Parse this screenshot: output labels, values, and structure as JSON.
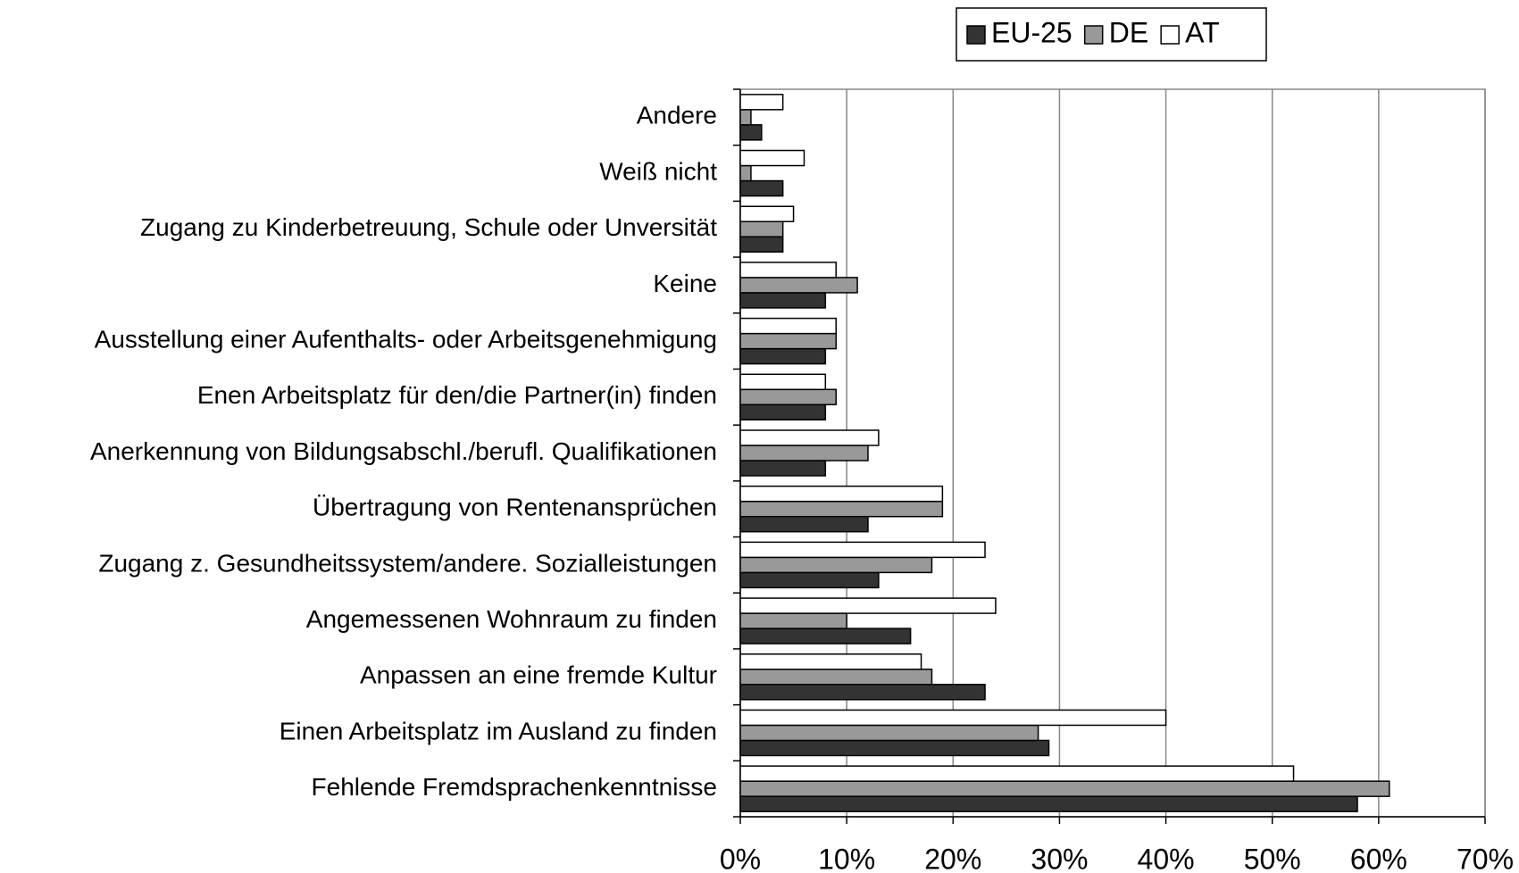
{
  "chart_data": {
    "type": "hbar",
    "categories": [
      "Andere",
      "Weiß nicht",
      "Zugang zu Kinderbetreuung, Schule oder Unversität",
      "Keine",
      "Ausstellung einer Aufenthalts- oder Arbeitsgenehmigung",
      "Enen Arbeitsplatz für den/die Partner(in) finden",
      "Anerkennung von Bildungsabschl./berufl. Qualifikationen",
      "Übertragung von Rentenansprüchen",
      "Zugang z. Gesundheitssystem/andere. Sozialleistungen",
      "Angemessenen Wohnraum zu finden",
      "Anpassen an eine fremde Kultur",
      "Einen Arbeitsplatz im Ausland zu finden",
      "Fehlende Fremdsprachenkenntnisse"
    ],
    "series": [
      {
        "name": "EU-25",
        "color": "#333333",
        "values": [
          2,
          4,
          4,
          8,
          8,
          8,
          8,
          12,
          13,
          16,
          23,
          29,
          58
        ]
      },
      {
        "name": "DE",
        "color": "#999999",
        "values": [
          1,
          1,
          4,
          11,
          9,
          9,
          12,
          19,
          18,
          10,
          18,
          28,
          61
        ]
      },
      {
        "name": "AT",
        "color": "#ffffff",
        "values": [
          4,
          6,
          5,
          9,
          9,
          8,
          13,
          19,
          23,
          24,
          17,
          40,
          52
        ]
      }
    ],
    "xlim": [
      0,
      70
    ],
    "xticks": [
      {
        "value": 0,
        "label": "0%"
      },
      {
        "value": 10,
        "label": "10%"
      },
      {
        "value": 20,
        "label": "20%"
      },
      {
        "value": 30,
        "label": "30%"
      },
      {
        "value": 40,
        "label": "40%"
      },
      {
        "value": 50,
        "label": "50%"
      },
      {
        "value": 60,
        "label": "60%"
      },
      {
        "value": 70,
        "label": "70%"
      }
    ],
    "grid": true,
    "legend": "top"
  }
}
